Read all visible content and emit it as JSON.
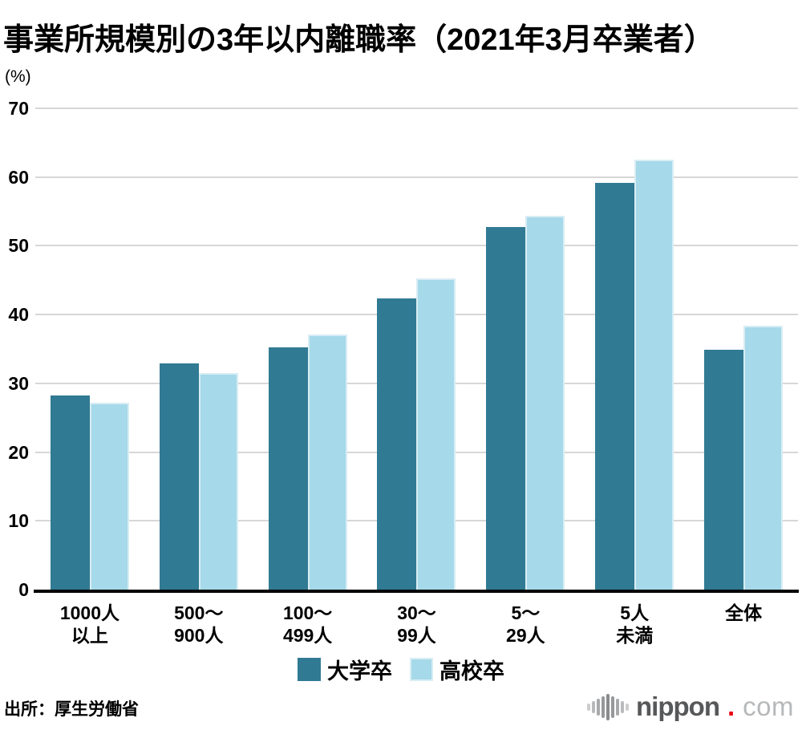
{
  "page": {
    "title": "事業所規模別の3年以内離職率（2021年3月卒業者）",
    "unit_label": "(%)",
    "source": "出所：厚生労働省",
    "logo": {
      "name": "nippon",
      "dot": ".",
      "tld": "com",
      "name_color": "#57585a",
      "dot_color": "#e60012",
      "tld_color": "#b6b8ba",
      "icon": "audio-wave-bars"
    }
  },
  "chart_data": {
    "type": "bar",
    "title": "事業所規模別の3年以内離職率（2021年3月卒業者）",
    "ylabel": "(%)",
    "categories": [
      "1000人\n以上",
      "500〜\n900人",
      "100〜\n499人",
      "30〜\n99人",
      "5〜\n29人",
      "5人\n未満",
      "全体"
    ],
    "series": [
      {
        "name": "大学卒",
        "color": "#317a93",
        "values": [
          28.2,
          32.9,
          35.2,
          42.4,
          52.7,
          59.1,
          34.9
        ]
      },
      {
        "name": "高校卒",
        "color": "#a6d9e9",
        "values": [
          27.2,
          31.5,
          37.1,
          45.3,
          54.4,
          62.5,
          38.4
        ]
      }
    ],
    "ylim": [
      0,
      70
    ],
    "yticks": [
      0,
      10,
      20,
      30,
      40,
      50,
      60,
      70
    ],
    "grid": true,
    "grid_color": "#d7d7d7",
    "axis_color": "#000000",
    "legend_position": "bottom"
  }
}
